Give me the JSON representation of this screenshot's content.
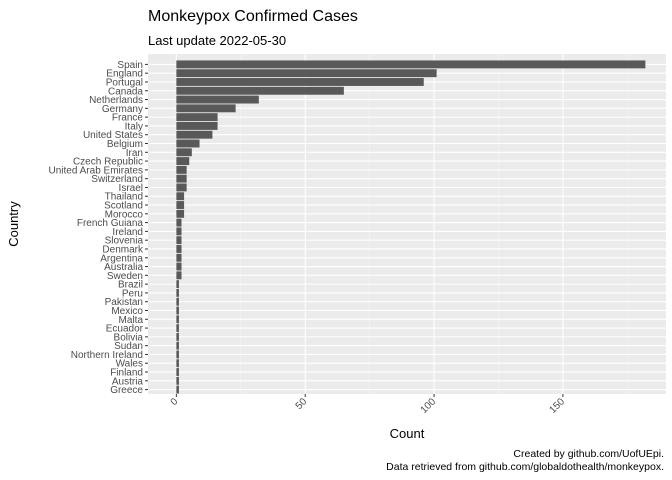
{
  "chart_data": {
    "type": "bar",
    "orientation": "horizontal",
    "title": "Monkeypox Confirmed Cases",
    "subtitle": "Last update 2022-05-30",
    "xlabel": "Count",
    "ylabel": "Country",
    "xlim": [
      -11,
      190
    ],
    "xticks": [
      0,
      50,
      100,
      150
    ],
    "grid": true,
    "bar_color": "#595959",
    "panel_color": "#ebebeb",
    "categories": [
      "Spain",
      "England",
      "Portugal",
      "Canada",
      "Netherlands",
      "Germany",
      "France",
      "Italy",
      "United States",
      "Belgium",
      "Iran",
      "Czech Republic",
      "United Arab Emirates",
      "Switzerland",
      "Israel",
      "Thailand",
      "Scotland",
      "Morocco",
      "French Guiana",
      "Ireland",
      "Slovenia",
      "Denmark",
      "Argentina",
      "Australia",
      "Sweden",
      "Brazil",
      "Peru",
      "Pakistan",
      "Mexico",
      "Malta",
      "Ecuador",
      "Bolivia",
      "Sudan",
      "Northern Ireland",
      "Wales",
      "Finland",
      "Austria",
      "Greece"
    ],
    "values": [
      182,
      101,
      96,
      65,
      32,
      23,
      16,
      16,
      14,
      9,
      6,
      5,
      4,
      4,
      4,
      3,
      3,
      3,
      2,
      2,
      2,
      2,
      2,
      2,
      2,
      1,
      1,
      1,
      1,
      1,
      1,
      1,
      1,
      1,
      1,
      1,
      1,
      1
    ],
    "caption": [
      "Created by github.com/UofUEpi.",
      "Data retrieved from github.com/globaldothealth/monkeypox."
    ]
  }
}
